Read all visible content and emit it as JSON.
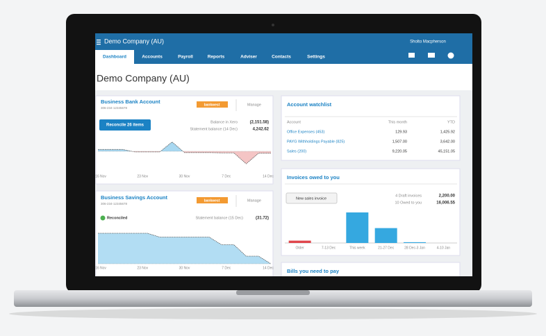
{
  "app": {
    "company_menu": "Demo Company (AU)",
    "user": "Sholto Macpherson",
    "nav": [
      "Dashboard",
      "Accounts",
      "Payroll",
      "Reports",
      "Adviser",
      "Contacts",
      "Settings"
    ]
  },
  "page_title": "Demo Company (AU)",
  "bank_account": {
    "title": "Business Bank Account",
    "number": "306-234-12345678",
    "badge": "bankwest",
    "manage": "Manage",
    "button": "Reconcile 26 items",
    "balance_label": "Balance in Xero",
    "balance": "(2,151.58)",
    "statement_label": "Statement balance (14 Dec)",
    "statement": "4,242.62",
    "chart": {
      "x_labels": [
        "16 Nov",
        "23 Nov",
        "30 Nov",
        "7 Dec",
        "14 Dec"
      ],
      "values": [
        300,
        300,
        300,
        -100,
        -100,
        -100,
        1500,
        -200,
        -200,
        -200,
        -250,
        -250,
        -2000,
        -300,
        -300
      ],
      "positive_color": "#3fa9e0",
      "negative_color": "#e05a5a"
    }
  },
  "savings_account": {
    "title": "Business Savings Account",
    "number": "306-234-12345678",
    "badge": "bankwest",
    "manage": "Manage",
    "status": "Reconciled",
    "statement_label": "Statement balance (15 Dec)",
    "statement": "(31.72)",
    "chart": {
      "x_labels": [
        "16 Nov",
        "23 Nov",
        "30 Nov",
        "7 Dec",
        "14 Dec"
      ],
      "values": [
        4000,
        4000,
        4000,
        4000,
        4000,
        3500,
        3500,
        3500,
        3500,
        3500,
        2500,
        2500,
        1000,
        1000,
        0
      ],
      "color": "#3fa9e0"
    }
  },
  "watchlist": {
    "title": "Account watchlist",
    "columns": [
      "Account",
      "This month",
      "YTD"
    ],
    "rows": [
      [
        "Office Expenses (453)",
        "129.93",
        "1,425.92"
      ],
      [
        "PAYG Withholdings Payable (825)",
        "1,507.00",
        "3,642.00"
      ],
      [
        "Sales (200)",
        "9,220.05",
        "45,151.05"
      ]
    ]
  },
  "invoices": {
    "title": "Invoices owed to you",
    "button": "New sales invoice",
    "summary": [
      [
        "4 Draft invoices",
        "2,200.00"
      ],
      [
        "10 Owed to you",
        "16,006.55"
      ]
    ],
    "chart": {
      "categories": [
        "Older",
        "7-13 Dec",
        "This week",
        "21-27 Dec",
        "28 Dec-3 Jan",
        "4-10 Jan"
      ],
      "values": [
        300,
        0,
        3900,
        1900,
        100,
        0
      ],
      "colors": [
        "#e0464c",
        "#35a8e0",
        "#35a8e0",
        "#35a8e0",
        "#35a8e0",
        "#35a8e0"
      ]
    }
  },
  "bills": {
    "title": "Bills you need to pay"
  }
}
